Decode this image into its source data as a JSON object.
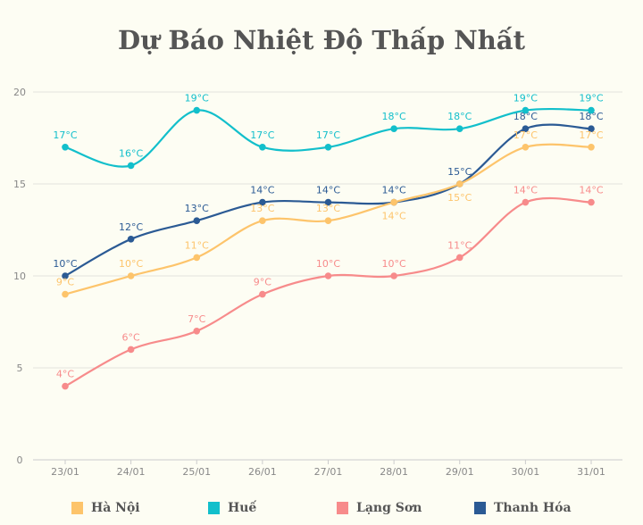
{
  "chart_data": {
    "type": "line",
    "title": "Dự Báo Nhiệt Độ Thấp Nhất",
    "categories": [
      "23/01",
      "24/01",
      "25/01",
      "26/01",
      "27/01",
      "28/01",
      "29/01",
      "30/01",
      "31/01"
    ],
    "ylim": [
      0,
      20
    ],
    "yticks": [
      0,
      5,
      10,
      15,
      20
    ],
    "grid": true,
    "smooth": true,
    "legend_position": "bottom",
    "label_suffix": "°C",
    "series": [
      {
        "name": "Thanh Hóa",
        "color": "#2b5a94",
        "values": [
          10,
          12,
          13,
          14,
          14,
          14,
          15,
          18,
          18
        ]
      },
      {
        "name": "Hà Nội",
        "color": "#fdc46b",
        "values": [
          9,
          10,
          11,
          13,
          13,
          14,
          15,
          17,
          17
        ]
      },
      {
        "name": "Huế",
        "color": "#12bfcb",
        "values": [
          17,
          16,
          19,
          17,
          17,
          18,
          18,
          19,
          19
        ]
      },
      {
        "name": "Lạng Sơn",
        "color": "#f78b8b",
        "values": [
          4,
          6,
          7,
          9,
          10,
          10,
          11,
          14,
          14
        ]
      }
    ]
  },
  "legend": [
    {
      "label": "Hà Nội",
      "color": "#fdc46b"
    },
    {
      "label": "Huế",
      "color": "#12bfcb"
    },
    {
      "label": "Lạng Sơn",
      "color": "#f78b8b"
    },
    {
      "label": "Thanh Hóa",
      "color": "#2b5a94"
    }
  ]
}
